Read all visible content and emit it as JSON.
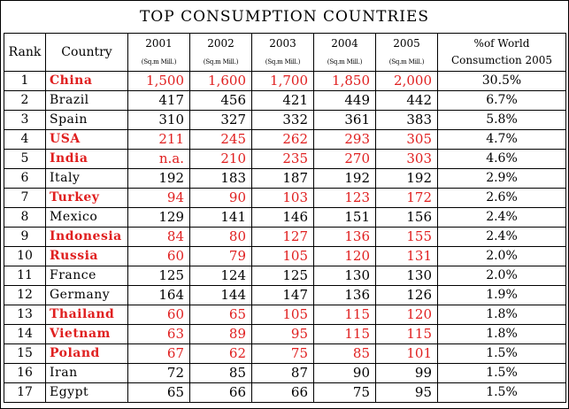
{
  "chart_data": {
    "type": "table",
    "title": "TOP CONSUMPTION COUNTRIES",
    "columns": {
      "rank": "Rank",
      "country": "Country",
      "years": [
        "2001",
        "2002",
        "2003",
        "2004",
        "2005"
      ],
      "unit": "(Sq.m Mill.)",
      "share_line1": "%of World",
      "share_line2": "Consumction 2005"
    },
    "highlight_color": "#e02020",
    "rows": [
      {
        "rank": "1",
        "country": "China",
        "values": [
          "1,500",
          "1,600",
          "1,700",
          "1,850",
          "2,000"
        ],
        "share": "30.5%",
        "highlight": true
      },
      {
        "rank": "2",
        "country": "Brazil",
        "values": [
          "417",
          "456",
          "421",
          "449",
          "442"
        ],
        "share": "6.7%",
        "highlight": false
      },
      {
        "rank": "3",
        "country": "Spain",
        "values": [
          "310",
          "327",
          "332",
          "361",
          "383"
        ],
        "share": "5.8%",
        "highlight": false
      },
      {
        "rank": "4",
        "country": "USA",
        "values": [
          "211",
          "245",
          "262",
          "293",
          "305"
        ],
        "share": "4.7%",
        "highlight": true
      },
      {
        "rank": "5",
        "country": "India",
        "values": [
          "n.a.",
          "210",
          "235",
          "270",
          "303"
        ],
        "share": "4.6%",
        "highlight": true
      },
      {
        "rank": "6",
        "country": "Italy",
        "values": [
          "192",
          "183",
          "187",
          "192",
          "192"
        ],
        "share": "2.9%",
        "highlight": false
      },
      {
        "rank": "7",
        "country": "Turkey",
        "values": [
          "94",
          "90",
          "103",
          "123",
          "172"
        ],
        "share": "2.6%",
        "highlight": true
      },
      {
        "rank": "8",
        "country": "Mexico",
        "values": [
          "129",
          "141",
          "146",
          "151",
          "156"
        ],
        "share": "2.4%",
        "highlight": false
      },
      {
        "rank": "9",
        "country": "Indonesia",
        "values": [
          "84",
          "80",
          "127",
          "136",
          "155"
        ],
        "share": "2.4%",
        "highlight": true
      },
      {
        "rank": "10",
        "country": "Russia",
        "values": [
          "60",
          "79",
          "105",
          "120",
          "131"
        ],
        "share": "2.0%",
        "highlight": true
      },
      {
        "rank": "11",
        "country": "France",
        "values": [
          "125",
          "124",
          "125",
          "130",
          "130"
        ],
        "share": "2.0%",
        "highlight": false
      },
      {
        "rank": "12",
        "country": "Germany",
        "values": [
          "164",
          "144",
          "147",
          "136",
          "126"
        ],
        "share": "1.9%",
        "highlight": false
      },
      {
        "rank": "13",
        "country": "Thailand",
        "values": [
          "60",
          "65",
          "105",
          "115",
          "120"
        ],
        "share": "1.8%",
        "highlight": true
      },
      {
        "rank": "14",
        "country": "Vietnam",
        "values": [
          "63",
          "89",
          "95",
          "115",
          "115"
        ],
        "share": "1.8%",
        "highlight": true
      },
      {
        "rank": "15",
        "country": "Poland",
        "values": [
          "67",
          "62",
          "75",
          "85",
          "101"
        ],
        "share": "1.5%",
        "highlight": true
      },
      {
        "rank": "16",
        "country": "Iran",
        "values": [
          "72",
          "85",
          "87",
          "90",
          "99"
        ],
        "share": "1.5%",
        "highlight": false
      },
      {
        "rank": "17",
        "country": "Egypt",
        "values": [
          "65",
          "66",
          "66",
          "75",
          "95"
        ],
        "share": "1.5%",
        "highlight": false
      }
    ]
  }
}
